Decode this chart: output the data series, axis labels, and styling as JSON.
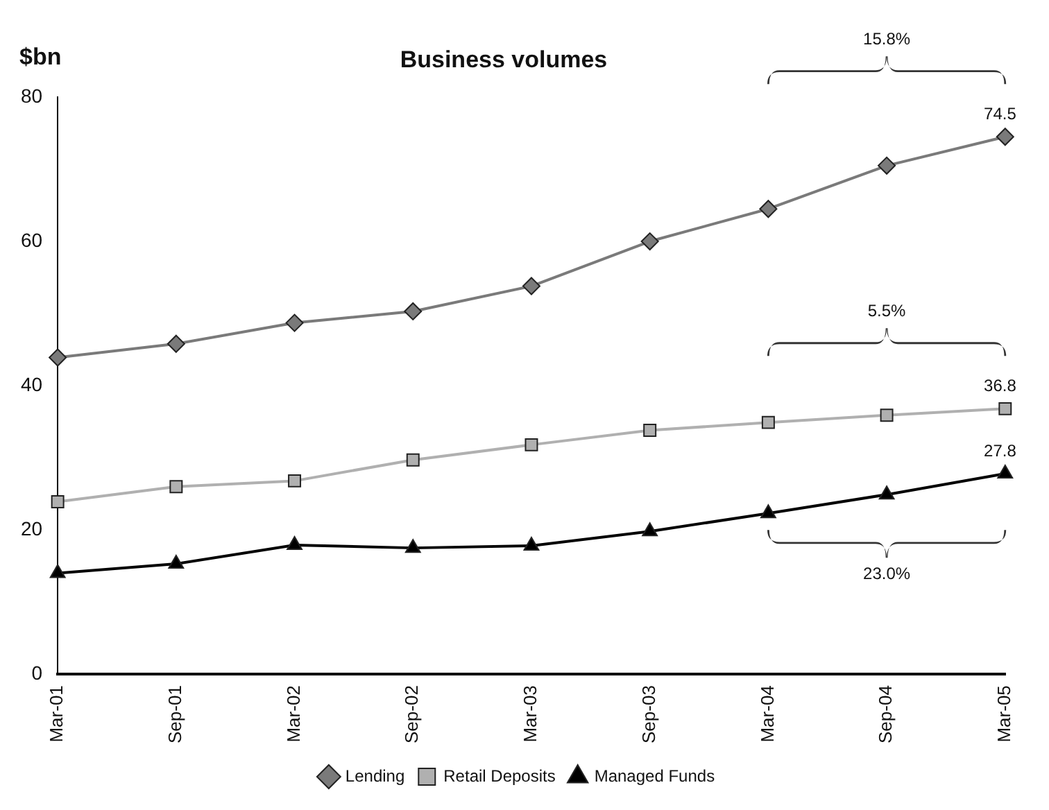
{
  "chart_data": {
    "type": "line",
    "title": "Business volumes",
    "ylabel": "$bn",
    "categories": [
      "Mar-01",
      "Sep-01",
      "Mar-02",
      "Sep-02",
      "Mar-03",
      "Sep-03",
      "Mar-04",
      "Sep-04",
      "Mar-05"
    ],
    "series": [
      {
        "name": "Lending",
        "color": "#7a7a7a",
        "marker": "diamond",
        "values": [
          43.9,
          45.8,
          48.7,
          50.3,
          53.8,
          60.0,
          64.5,
          70.5,
          74.5
        ],
        "value_labels": [
          null,
          null,
          null,
          null,
          null,
          null,
          null,
          null,
          "74.5"
        ]
      },
      {
        "name": "Retail Deposits",
        "color": "#b0b0b0",
        "marker": "square",
        "values": [
          23.9,
          26.0,
          26.8,
          29.7,
          31.8,
          33.8,
          34.9,
          35.9,
          36.8
        ],
        "value_labels": [
          null,
          null,
          null,
          null,
          null,
          null,
          null,
          null,
          "36.8"
        ]
      },
      {
        "name": "Managed Funds",
        "color": "#000000",
        "marker": "triangle",
        "values": [
          14.0,
          15.3,
          17.9,
          17.5,
          17.8,
          19.8,
          22.3,
          24.9,
          27.8
        ],
        "value_labels": [
          null,
          null,
          null,
          null,
          null,
          null,
          null,
          null,
          "27.8"
        ]
      }
    ],
    "annotations": [
      "15.8%",
      "5.5%",
      "23.0%"
    ],
    "ylim": [
      0,
      80
    ],
    "yticks": [
      0,
      20,
      40,
      60,
      80
    ],
    "grid": false,
    "legend": "bottom"
  }
}
